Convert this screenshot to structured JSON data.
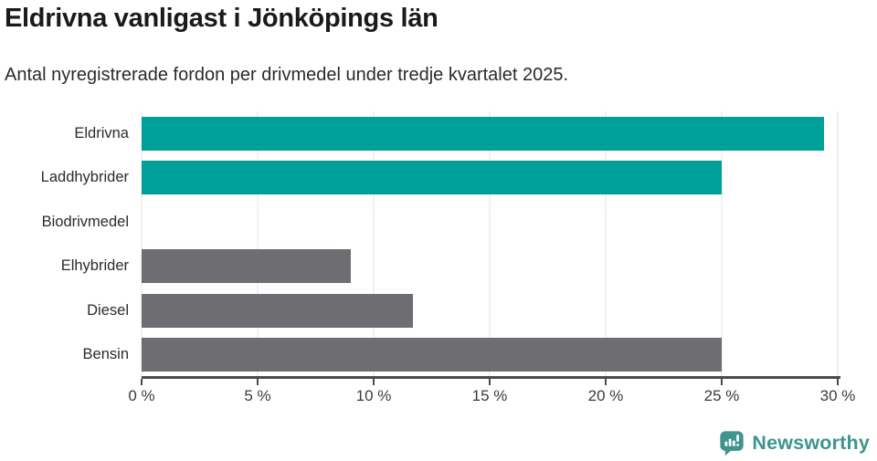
{
  "chart_data": {
    "type": "bar",
    "orientation": "horizontal",
    "title": "Eldrivna vanligast i Jönköpings län",
    "subtitle": "Antal nyregistrerade fordon per drivmedel under tredje kvartalet 2025.",
    "categories": [
      "Eldrivna",
      "Laddhybrider",
      "Biodrivmedel",
      "Elhybrider",
      "Diesel",
      "Bensin"
    ],
    "values": [
      29.4,
      25.0,
      0,
      9.0,
      11.7,
      25.0
    ],
    "unit": "%",
    "bar_colors": [
      "#00a09a",
      "#00a09a",
      "#6d6d72",
      "#6d6d72",
      "#6d6d72",
      "#6d6d72"
    ],
    "highlight_color": "#00a09a",
    "default_color": "#6d6d72",
    "xlabel": "",
    "ylabel": "",
    "xlim": [
      0,
      30
    ],
    "x_ticks": [
      0,
      5,
      10,
      15,
      20,
      25,
      30
    ],
    "x_tick_suffix": " %",
    "grid": true,
    "legend": false,
    "value_labels": false
  },
  "footer": {
    "brand": "Newsworthy"
  },
  "style": {
    "grid": "#e3e3e3",
    "axis": "#4b4b4b",
    "text": "#2b2b2b",
    "tick": "#3c3c3c",
    "logo": "#3e948e",
    "bg": "#ffffff",
    "title": "#1a1a1a"
  }
}
